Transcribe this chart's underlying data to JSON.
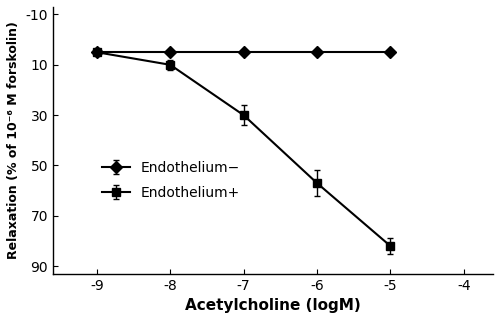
{
  "x": [
    -9,
    -8,
    -7,
    -6,
    -5
  ],
  "endo_minus_y": [
    5,
    5,
    5,
    5,
    5
  ],
  "endo_minus_yerr": [
    0.8,
    0.8,
    0.8,
    0.8,
    0.8
  ],
  "endo_plus_y": [
    5,
    10,
    30,
    57,
    82
  ],
  "endo_plus_yerr": [
    1.0,
    2.0,
    4.0,
    5.0,
    3.0
  ],
  "xlabel": "Acetylcholine (logM)",
  "ylabel": "Relaxation (% of 10⁻⁶ M forskolin)",
  "xlim": [
    -9.6,
    -3.6
  ],
  "ylim": [
    93,
    -13
  ],
  "yticks": [
    -10,
    10,
    30,
    50,
    70,
    90
  ],
  "xticks": [
    -9,
    -8,
    -7,
    -6,
    -5,
    -4
  ],
  "xtick_labels": [
    "-9",
    "-8",
    "-7",
    "-6",
    "-5",
    "-4"
  ],
  "legend_endo_minus": "Endothelium−",
  "legend_endo_plus": "Endothelium+",
  "line_color": "black",
  "marker_minus": "D",
  "marker_plus": "s",
  "markersize": 6,
  "linewidth": 1.5
}
